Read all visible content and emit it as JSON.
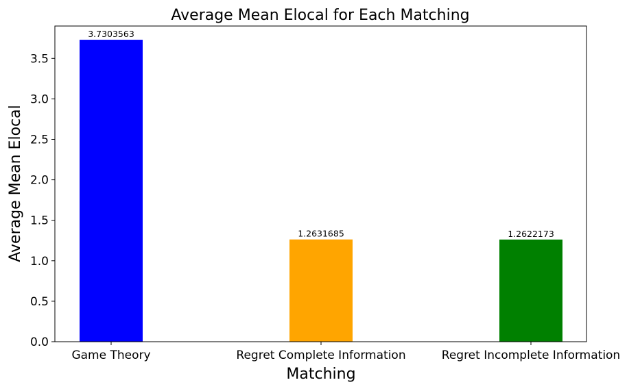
{
  "chart_data": {
    "type": "bar",
    "title": "Average Mean Elocal for Each Matching",
    "xlabel": "Matching",
    "ylabel": "Average Mean Elocal",
    "categories": [
      "Game Theory",
      "Regret Complete Information",
      "Regret Incomplete Information"
    ],
    "values": [
      3.7303563,
      1.2631685,
      1.2622173
    ],
    "data_labels": [
      "3.7303563",
      "1.2631685",
      "1.2622173"
    ],
    "colors": [
      "#0000ff",
      "#ffa500",
      "#008000"
    ],
    "ylim": [
      0,
      3.9
    ],
    "yticks": [
      0.0,
      0.5,
      1.0,
      1.5,
      2.0,
      2.5,
      3.0,
      3.5
    ],
    "ytick_labels": [
      "0.0",
      "0.5",
      "1.0",
      "1.5",
      "2.0",
      "2.5",
      "3.0",
      "3.5"
    ],
    "grid": false,
    "legend": "none"
  }
}
